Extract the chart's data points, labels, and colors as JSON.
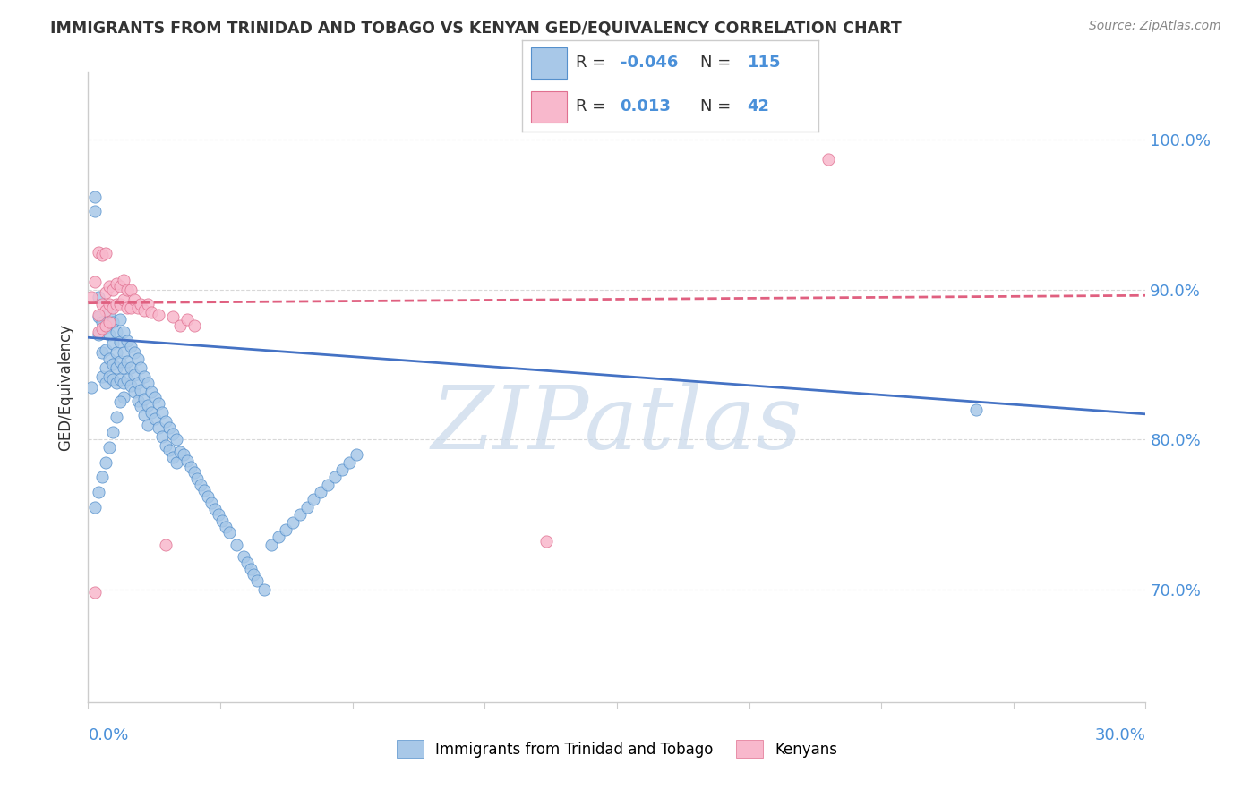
{
  "title": "IMMIGRANTS FROM TRINIDAD AND TOBAGO VS KENYAN GED/EQUIVALENCY CORRELATION CHART",
  "source": "Source: ZipAtlas.com",
  "ylabel": "GED/Equivalency",
  "ytick_values": [
    0.7,
    0.8,
    0.9,
    1.0
  ],
  "xlim": [
    0.0,
    0.3
  ],
  "ylim": [
    0.625,
    1.045
  ],
  "blue_R": "-0.046",
  "blue_N": "115",
  "pink_R": "0.013",
  "pink_N": "42",
  "blue_face_color": "#a8c8e8",
  "pink_face_color": "#f8b8cc",
  "blue_edge_color": "#5590cc",
  "pink_edge_color": "#e07090",
  "blue_line_color": "#4472c4",
  "pink_line_color": "#e06080",
  "watermark": "ZIPatlas",
  "watermark_color": "#c8d8ea",
  "legend_label_blue": "Immigrants from Trinidad and Tobago",
  "legend_label_pink": "Kenyans",
  "blue_line_y0": 0.868,
  "blue_line_y1": 0.817,
  "pink_line_y0": 0.891,
  "pink_line_y1": 0.896,
  "grid_color": "#d8d8d8",
  "spine_color": "#cccccc",
  "title_color": "#333333",
  "source_color": "#888888",
  "axis_label_color": "#4a90d9",
  "blue_points_x": [
    0.001,
    0.002,
    0.002,
    0.003,
    0.003,
    0.003,
    0.004,
    0.004,
    0.004,
    0.005,
    0.005,
    0.005,
    0.005,
    0.006,
    0.006,
    0.006,
    0.006,
    0.007,
    0.007,
    0.007,
    0.007,
    0.008,
    0.008,
    0.008,
    0.008,
    0.009,
    0.009,
    0.009,
    0.009,
    0.01,
    0.01,
    0.01,
    0.01,
    0.01,
    0.011,
    0.011,
    0.011,
    0.012,
    0.012,
    0.012,
    0.013,
    0.013,
    0.013,
    0.014,
    0.014,
    0.014,
    0.015,
    0.015,
    0.015,
    0.016,
    0.016,
    0.016,
    0.017,
    0.017,
    0.017,
    0.018,
    0.018,
    0.019,
    0.019,
    0.02,
    0.02,
    0.021,
    0.021,
    0.022,
    0.022,
    0.023,
    0.023,
    0.024,
    0.024,
    0.025,
    0.025,
    0.026,
    0.027,
    0.028,
    0.029,
    0.03,
    0.031,
    0.032,
    0.033,
    0.034,
    0.035,
    0.036,
    0.037,
    0.038,
    0.039,
    0.04,
    0.042,
    0.044,
    0.045,
    0.046,
    0.047,
    0.048,
    0.05,
    0.052,
    0.054,
    0.056,
    0.058,
    0.06,
    0.062,
    0.064,
    0.066,
    0.068,
    0.07,
    0.072,
    0.074,
    0.076,
    0.002,
    0.003,
    0.004,
    0.005,
    0.006,
    0.007,
    0.008,
    0.009,
    0.252
  ],
  "blue_points_y": [
    0.835,
    0.962,
    0.952,
    0.87,
    0.882,
    0.895,
    0.878,
    0.858,
    0.842,
    0.875,
    0.86,
    0.848,
    0.838,
    0.884,
    0.87,
    0.854,
    0.842,
    0.878,
    0.864,
    0.85,
    0.84,
    0.872,
    0.858,
    0.848,
    0.838,
    0.88,
    0.865,
    0.852,
    0.84,
    0.872,
    0.858,
    0.848,
    0.838,
    0.828,
    0.866,
    0.852,
    0.84,
    0.862,
    0.848,
    0.836,
    0.858,
    0.843,
    0.832,
    0.854,
    0.838,
    0.826,
    0.848,
    0.833,
    0.822,
    0.842,
    0.827,
    0.816,
    0.838,
    0.823,
    0.81,
    0.832,
    0.818,
    0.828,
    0.814,
    0.824,
    0.808,
    0.818,
    0.802,
    0.812,
    0.796,
    0.808,
    0.793,
    0.804,
    0.788,
    0.8,
    0.785,
    0.792,
    0.79,
    0.786,
    0.782,
    0.778,
    0.774,
    0.77,
    0.766,
    0.762,
    0.758,
    0.754,
    0.75,
    0.746,
    0.742,
    0.738,
    0.73,
    0.722,
    0.718,
    0.714,
    0.71,
    0.706,
    0.7,
    0.73,
    0.735,
    0.74,
    0.745,
    0.75,
    0.755,
    0.76,
    0.765,
    0.77,
    0.775,
    0.78,
    0.785,
    0.79,
    0.755,
    0.765,
    0.775,
    0.785,
    0.795,
    0.805,
    0.815,
    0.825,
    0.82
  ],
  "pink_points_x": [
    0.001,
    0.002,
    0.003,
    0.003,
    0.004,
    0.004,
    0.005,
    0.005,
    0.005,
    0.006,
    0.006,
    0.006,
    0.007,
    0.007,
    0.008,
    0.008,
    0.009,
    0.009,
    0.01,
    0.01,
    0.011,
    0.011,
    0.012,
    0.012,
    0.013,
    0.014,
    0.015,
    0.016,
    0.017,
    0.018,
    0.02,
    0.022,
    0.024,
    0.026,
    0.028,
    0.03,
    0.002,
    0.003,
    0.004,
    0.005,
    0.13,
    0.21
  ],
  "pink_points_y": [
    0.895,
    0.905,
    0.925,
    0.872,
    0.89,
    0.874,
    0.898,
    0.886,
    0.876,
    0.902,
    0.89,
    0.878,
    0.9,
    0.888,
    0.904,
    0.89,
    0.902,
    0.89,
    0.906,
    0.893,
    0.9,
    0.888,
    0.9,
    0.888,
    0.893,
    0.888,
    0.89,
    0.886,
    0.89,
    0.885,
    0.883,
    0.73,
    0.882,
    0.876,
    0.88,
    0.876,
    0.698,
    0.883,
    0.923,
    0.924,
    0.732,
    0.987
  ]
}
